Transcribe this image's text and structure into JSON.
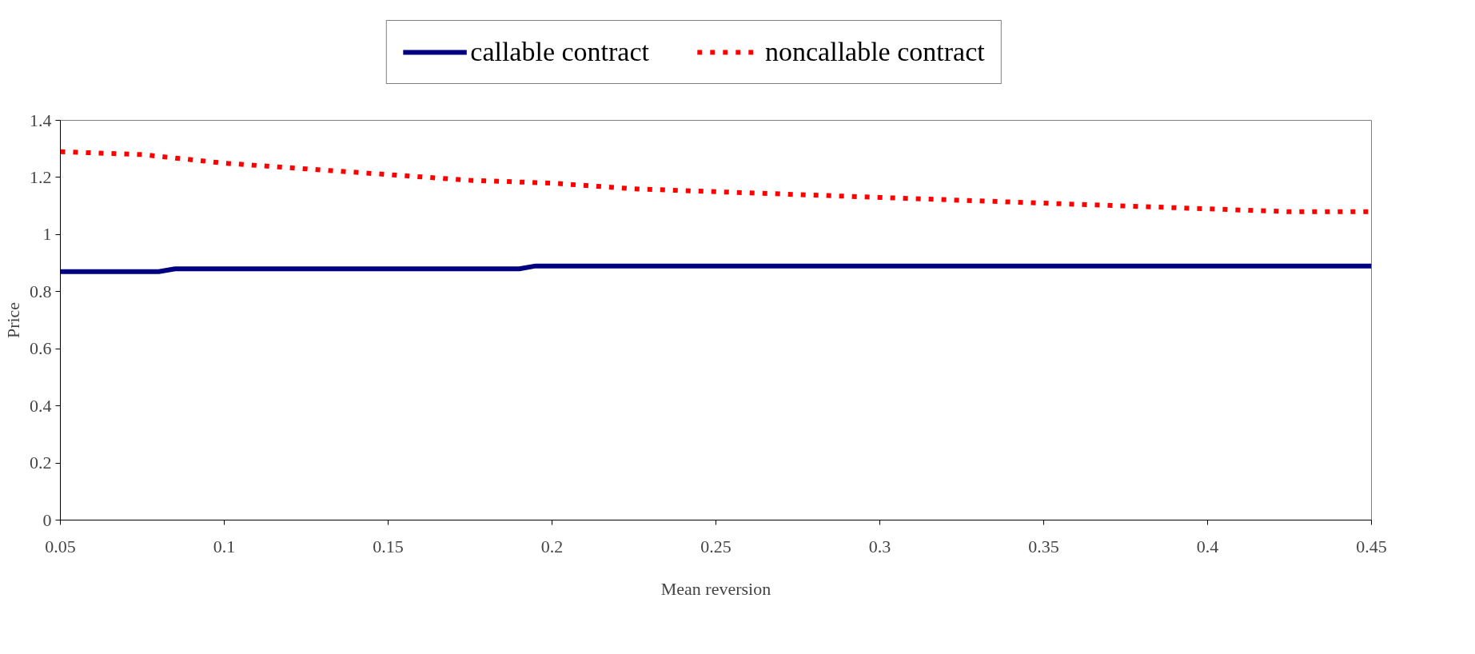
{
  "chart_data": {
    "type": "line",
    "xlabel": "Mean reversion",
    "ylabel": "Price",
    "xlim": [
      0.05,
      0.45
    ],
    "ylim": [
      0,
      1.4
    ],
    "xticks": [
      0.05,
      0.1,
      0.15,
      0.2,
      0.25,
      0.3,
      0.35,
      0.4,
      0.45
    ],
    "yticks": [
      0,
      0.2,
      0.4,
      0.6,
      0.8,
      1,
      1.2,
      1.4
    ],
    "grid": false,
    "legend": "top",
    "marker": "none",
    "series": [
      {
        "name": "callable contract",
        "color": "#000080",
        "line_style": "solid",
        "x": [
          0.05,
          0.08,
          0.085,
          0.19,
          0.195,
          0.45
        ],
        "values": [
          0.87,
          0.87,
          0.88,
          0.88,
          0.89,
          0.89
        ]
      },
      {
        "name": "noncallable contract",
        "color": "#ff0000",
        "line_style": "dashed",
        "x": [
          0.05,
          0.075,
          0.1,
          0.125,
          0.15,
          0.175,
          0.2,
          0.225,
          0.25,
          0.275,
          0.3,
          0.325,
          0.35,
          0.375,
          0.4,
          0.425,
          0.45
        ],
        "values": [
          1.29,
          1.28,
          1.25,
          1.23,
          1.21,
          1.19,
          1.18,
          1.16,
          1.15,
          1.14,
          1.13,
          1.12,
          1.11,
          1.1,
          1.09,
          1.08,
          1.08
        ]
      }
    ]
  }
}
